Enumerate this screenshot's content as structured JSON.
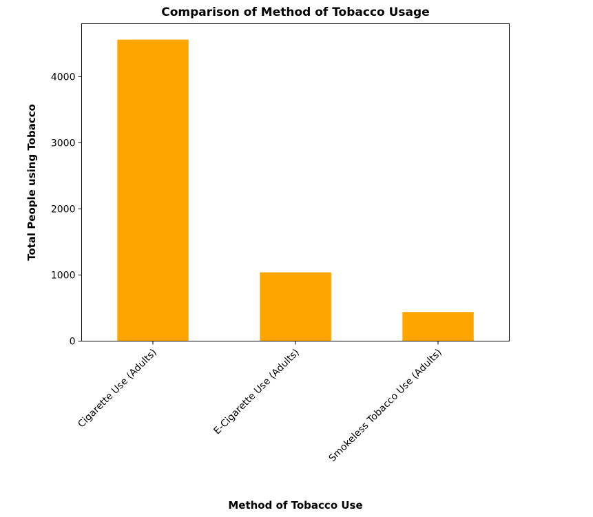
{
  "chart_data": {
    "type": "bar",
    "title": "Comparison of Method of Tobacco Usage",
    "xlabel": "Method of Tobacco Use",
    "ylabel": "Total People using Tobacco",
    "categories": [
      "Cigarette Use (Adults)",
      "E-Cigarette Use (Adults)",
      "Smokeless Tobacco Use (Adults)"
    ],
    "values": [
      4560,
      1040,
      440
    ],
    "ylim": [
      0,
      4800
    ],
    "yticks": [
      0,
      1000,
      2000,
      3000,
      4000
    ],
    "ytick_labels": [
      "0",
      "1000",
      "2000",
      "3000",
      "4000"
    ],
    "bar_color": "#FFA500",
    "grid": false,
    "legend": "none"
  }
}
